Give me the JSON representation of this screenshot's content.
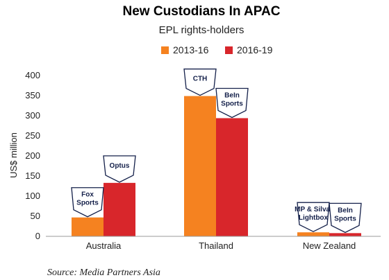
{
  "chart_data": {
    "type": "bar",
    "title": "New Custodians In APAC",
    "subtitle": "EPL rights-holders",
    "ylabel": "US$ million",
    "xlabel": "",
    "ylim": [
      0,
      400
    ],
    "yticks": [
      0,
      50,
      100,
      150,
      200,
      250,
      300,
      350,
      400
    ],
    "grid": false,
    "legend_position": "top",
    "categories": [
      "Australia",
      "Thailand",
      "New Zealand"
    ],
    "series": [
      {
        "name": "2013-16",
        "color": "#f58220",
        "values": [
          47,
          349,
          10
        ],
        "holders": [
          [
            "Fox",
            "Sports"
          ],
          [
            "CTH"
          ],
          [
            "MP & Silva,",
            "Lightbox"
          ]
        ]
      },
      {
        "name": "2016-19",
        "color": "#d8262b",
        "values": [
          133,
          294,
          8
        ],
        "holders": [
          [
            "Optus"
          ],
          [
            "BeIn",
            "Sports"
          ],
          [
            "BeIn",
            "Sports"
          ]
        ]
      }
    ],
    "source": "Source: Media Partners Asia"
  }
}
